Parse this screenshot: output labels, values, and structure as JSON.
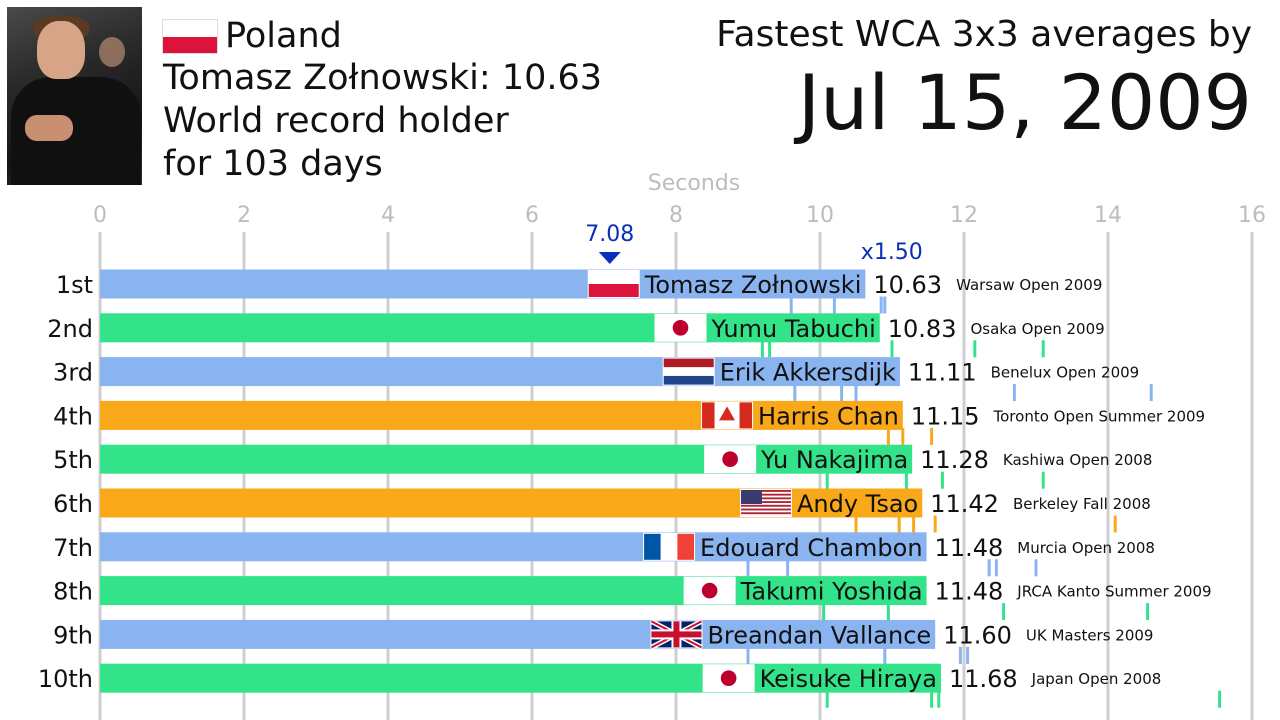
{
  "header": {
    "country": "Poland",
    "record_line": "Tomasz Zołnowski: 10.63",
    "holder_line1": "World record holder",
    "holder_line2": "for 103 days",
    "title": "Fastest WCA 3x3 averages by",
    "date": "Jul 15, 2009"
  },
  "colors": {
    "blue": "#8ab4f0",
    "green": "#33e38a",
    "orange": "#f8a818",
    "marker": "#0a2fb8",
    "grid": "#cfcfcf"
  },
  "chart_data": {
    "type": "bar",
    "orientation": "horizontal",
    "xlabel": "Seconds",
    "xlim": [
      0,
      16
    ],
    "xticks": [
      "0",
      "2",
      "4",
      "6",
      "8",
      "10",
      "12",
      "14",
      "16"
    ],
    "marker": {
      "value": 7.08,
      "label": "7.08"
    },
    "multiplier": {
      "value": 10.9,
      "label": "x1.50"
    },
    "rows": [
      {
        "rank": "1st",
        "name": "Tomasz Zołnowski",
        "value": 10.63,
        "value_label": "10.63",
        "competition": "Warsaw Open 2009",
        "color": "blue",
        "flag": "poland",
        "solves": [
          9.6,
          10.2,
          10.85,
          10.9
        ]
      },
      {
        "rank": "2nd",
        "name": "Yumu Tabuchi",
        "value": 10.83,
        "value_label": "10.83",
        "competition": "Osaka Open 2009",
        "color": "green",
        "flag": "japan",
        "solves": [
          9.2,
          9.3,
          11.0,
          12.15,
          13.1
        ]
      },
      {
        "rank": "3rd",
        "name": "Erik Akkersdijk",
        "value": 11.11,
        "value_label": "11.11",
        "competition": "Benelux Open 2009",
        "color": "blue",
        "flag": "netherlands",
        "solves": [
          9.65,
          10.3,
          10.5,
          12.7,
          14.6
        ]
      },
      {
        "rank": "4th",
        "name": "Harris Chan",
        "value": 11.15,
        "value_label": "11.15",
        "competition": "Toronto Open Summer 2009",
        "color": "orange",
        "flag": "canada",
        "solves": [
          10.95,
          11.15,
          11.55
        ]
      },
      {
        "rank": "5th",
        "name": "Yu Nakajima",
        "value": 11.28,
        "value_label": "11.28",
        "competition": "Kashiwa Open 2008",
        "color": "green",
        "flag": "japan",
        "solves": [
          10.1,
          11.2,
          11.7,
          13.1
        ]
      },
      {
        "rank": "6th",
        "name": "Andy Tsao",
        "value": 11.42,
        "value_label": "11.42",
        "competition": "Berkeley Fall 2008",
        "color": "orange",
        "flag": "usa",
        "solves": [
          10.5,
          11.1,
          11.3,
          11.6,
          14.1
        ]
      },
      {
        "rank": "7th",
        "name": "Edouard Chambon",
        "value": 11.48,
        "value_label": "11.48",
        "competition": "Murcia Open 2008",
        "color": "blue",
        "flag": "france",
        "solves": [
          9.0,
          9.55,
          12.35,
          12.45,
          13.0
        ]
      },
      {
        "rank": "8th",
        "name": "Takumi Yoshida",
        "value": 11.48,
        "value_label": "11.48",
        "competition": "JRCA Kanto Summer 2009",
        "color": "green",
        "flag": "japan",
        "solves": [
          10.05,
          10.95,
          12.55,
          14.55
        ]
      },
      {
        "rank": "9th",
        "name": "Breandan Vallance",
        "value": 11.6,
        "value_label": "11.60",
        "competition": "UK Masters 2009",
        "color": "blue",
        "flag": "uk",
        "solves": [
          9.0,
          10.9,
          11.95,
          12.05
        ]
      },
      {
        "rank": "10th",
        "name": "Keisuke Hiraya",
        "value": 11.68,
        "value_label": "11.68",
        "competition": "Japan Open 2008",
        "color": "green",
        "flag": "japan",
        "solves": [
          10.1,
          11.55,
          11.65,
          15.55
        ]
      }
    ]
  }
}
